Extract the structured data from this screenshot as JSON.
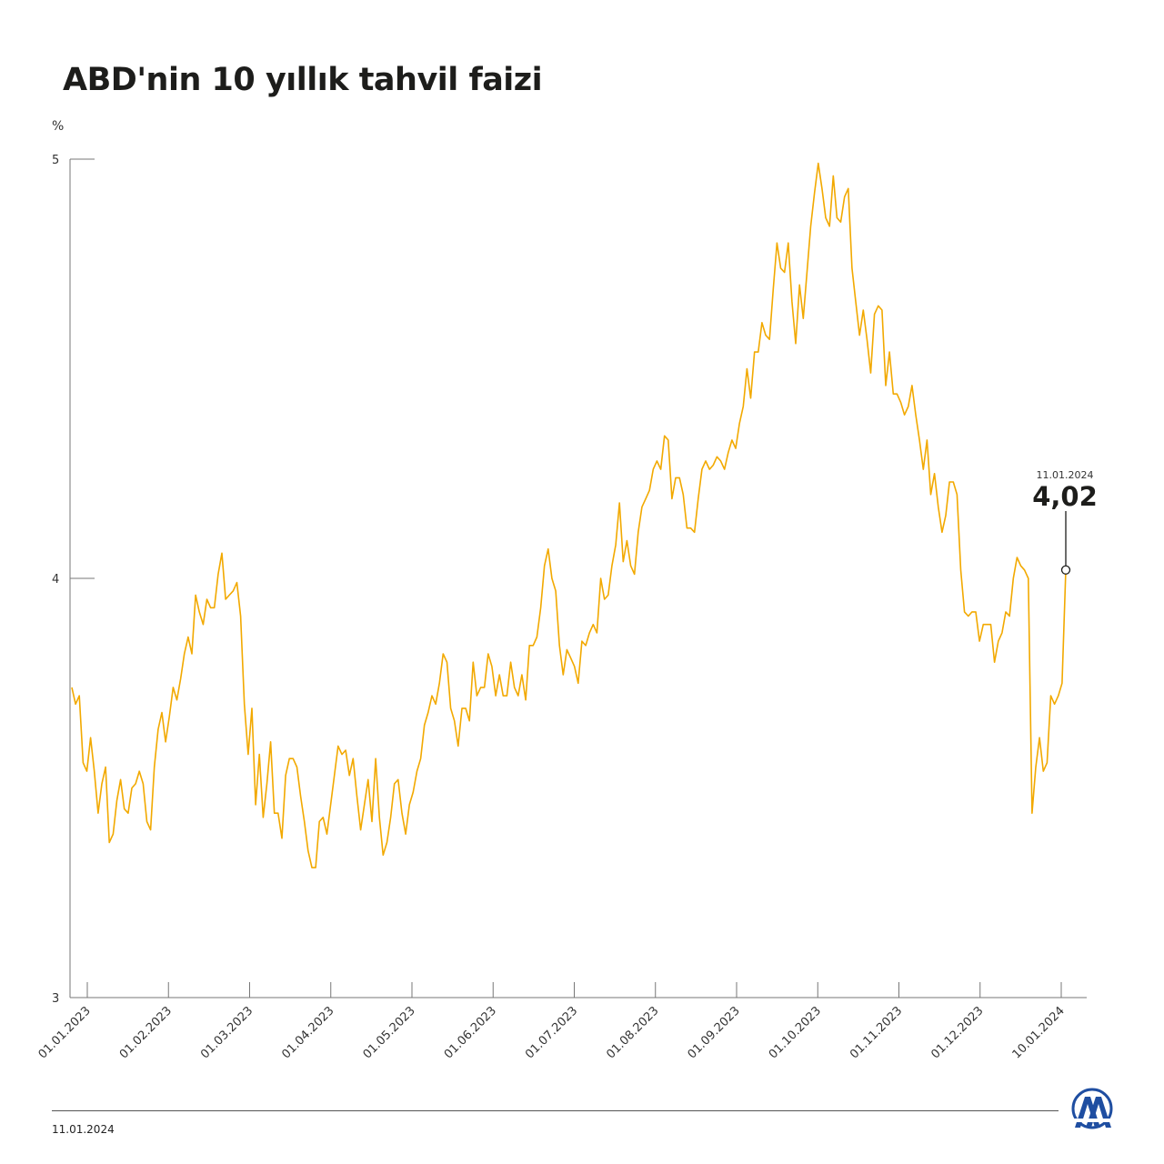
{
  "title": "ABD'nin 10 yıllık tahvil faizi",
  "footer": {
    "date": "11.01.2024",
    "logo_text": "AA"
  },
  "chart_data": {
    "type": "line",
    "title": "ABD'nin 10 yıllık tahvil faizi",
    "ylabel": "%",
    "xlabel": "",
    "ylim": [
      3,
      5
    ],
    "y_ticks": [
      "3",
      "4",
      "5"
    ],
    "x_ticks": [
      "01.01.2023",
      "01.02.2023",
      "01.03.2023",
      "01.04.2023",
      "01.05.2023",
      "01.06.2023",
      "01.07.2023",
      "01.08.2023",
      "01.09.2023",
      "01.10.2023",
      "01.11.2023",
      "01.12.2023",
      "10.01.2024"
    ],
    "grid": false,
    "line_color": "#f2a900",
    "annotation": {
      "date": "11.01.2024",
      "value": "4,02"
    },
    "series": [
      {
        "values": [
          3.74,
          3.7,
          3.72,
          3.56,
          3.54,
          3.62,
          3.54,
          3.44,
          3.51,
          3.55,
          3.37,
          3.39,
          3.47,
          3.52,
          3.45,
          3.44,
          3.5,
          3.51,
          3.54,
          3.51,
          3.42,
          3.4,
          3.55,
          3.64,
          3.68,
          3.61,
          3.67,
          3.74,
          3.71,
          3.76,
          3.82,
          3.86,
          3.82,
          3.96,
          3.92,
          3.89,
          3.95,
          3.93,
          3.93,
          4.01,
          4.06,
          3.95,
          3.96,
          3.97,
          3.99,
          3.91,
          3.7,
          3.58,
          3.69,
          3.46,
          3.58,
          3.43,
          3.51,
          3.61,
          3.44,
          3.44,
          3.38,
          3.53,
          3.57,
          3.57,
          3.55,
          3.48,
          3.42,
          3.35,
          3.31,
          3.31,
          3.42,
          3.43,
          3.39,
          3.46,
          3.53,
          3.6,
          3.58,
          3.59,
          3.53,
          3.57,
          3.48,
          3.4,
          3.46,
          3.52,
          3.42,
          3.57,
          3.43,
          3.34,
          3.37,
          3.43,
          3.51,
          3.52,
          3.44,
          3.39,
          3.46,
          3.49,
          3.54,
          3.57,
          3.65,
          3.68,
          3.72,
          3.7,
          3.75,
          3.82,
          3.8,
          3.69,
          3.66,
          3.6,
          3.69,
          3.69,
          3.66,
          3.8,
          3.72,
          3.74,
          3.74,
          3.82,
          3.79,
          3.72,
          3.77,
          3.72,
          3.72,
          3.8,
          3.74,
          3.72,
          3.77,
          3.71,
          3.84,
          3.84,
          3.86,
          3.93,
          4.03,
          4.07,
          4.0,
          3.97,
          3.84,
          3.77,
          3.83,
          3.81,
          3.79,
          3.75,
          3.85,
          3.84,
          3.87,
          3.89,
          3.87,
          4.0,
          3.95,
          3.96,
          4.03,
          4.08,
          4.18,
          4.04,
          4.09,
          4.03,
          4.01,
          4.11,
          4.17,
          4.19,
          4.21,
          4.26,
          4.28,
          4.26,
          4.34,
          4.33,
          4.19,
          4.24,
          4.24,
          4.2,
          4.12,
          4.12,
          4.11,
          4.19,
          4.26,
          4.28,
          4.26,
          4.27,
          4.29,
          4.28,
          4.26,
          4.3,
          4.33,
          4.31,
          4.37,
          4.41,
          4.5,
          4.43,
          4.54,
          4.54,
          4.61,
          4.58,
          4.57,
          4.69,
          4.8,
          4.74,
          4.73,
          4.8,
          4.66,
          4.56,
          4.7,
          4.62,
          4.73,
          4.84,
          4.92,
          4.99,
          4.93,
          4.86,
          4.84,
          4.96,
          4.86,
          4.85,
          4.91,
          4.93,
          4.74,
          4.66,
          4.58,
          4.64,
          4.57,
          4.49,
          4.63,
          4.65,
          4.64,
          4.46,
          4.54,
          4.44,
          4.44,
          4.42,
          4.39,
          4.41,
          4.46,
          4.39,
          4.33,
          4.26,
          4.33,
          4.2,
          4.25,
          4.17,
          4.11,
          4.15,
          4.23,
          4.23,
          4.2,
          4.02,
          3.92,
          3.91,
          3.92,
          3.92,
          3.85,
          3.89,
          3.89,
          3.89,
          3.8,
          3.85,
          3.87,
          3.92,
          3.91,
          4.0,
          4.05,
          4.03,
          4.02,
          4.0,
          3.44,
          3.55,
          3.62,
          3.54,
          3.56,
          3.72,
          3.7,
          3.72,
          3.75,
          4.02
        ]
      }
    ]
  }
}
